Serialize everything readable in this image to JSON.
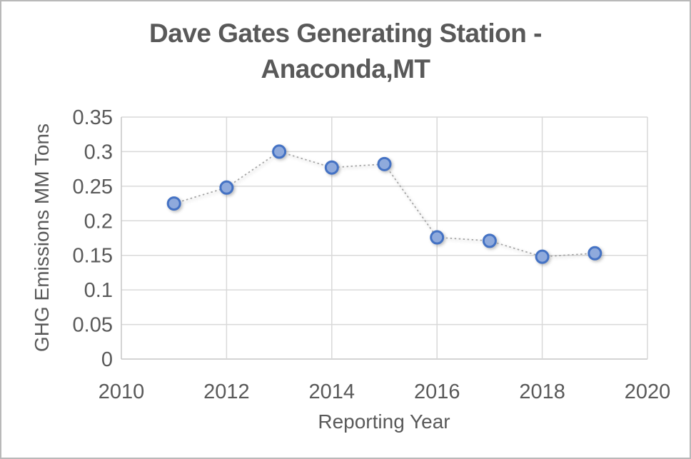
{
  "window": {
    "background": "#ffffff",
    "border_color": "#b9b9b9"
  },
  "chart_data": {
    "type": "scatter",
    "title": "Dave Gates Generating Station - Anaconda,MT",
    "title_lines": [
      "Dave Gates Generating Station -",
      "Anaconda,MT"
    ],
    "xlabel": "Reporting Year",
    "ylabel": "GHG Emissions MM Tons",
    "x": [
      2011,
      2012,
      2013,
      2014,
      2015,
      2016,
      2017,
      2018,
      2019
    ],
    "y": [
      0.225,
      0.248,
      0.3,
      0.277,
      0.282,
      0.176,
      0.171,
      0.148,
      0.153
    ],
    "xlim": [
      2010,
      2020
    ],
    "ylim": [
      0,
      0.35
    ],
    "x_ticks": [
      2010,
      2012,
      2014,
      2016,
      2018,
      2020
    ],
    "y_ticks": [
      0,
      0.05,
      0.1,
      0.15,
      0.2,
      0.25,
      0.3,
      0.35
    ],
    "grid": true,
    "legend": false,
    "marker": "circle",
    "line_style": "dotted",
    "colors": {
      "marker_fill": "#8faadc",
      "marker_stroke": "#4472c4",
      "connector_line": "#a6a6a6",
      "gridline": "#d9d9d9",
      "axis_line": "#c6c6c6",
      "text": "#595959"
    }
  }
}
